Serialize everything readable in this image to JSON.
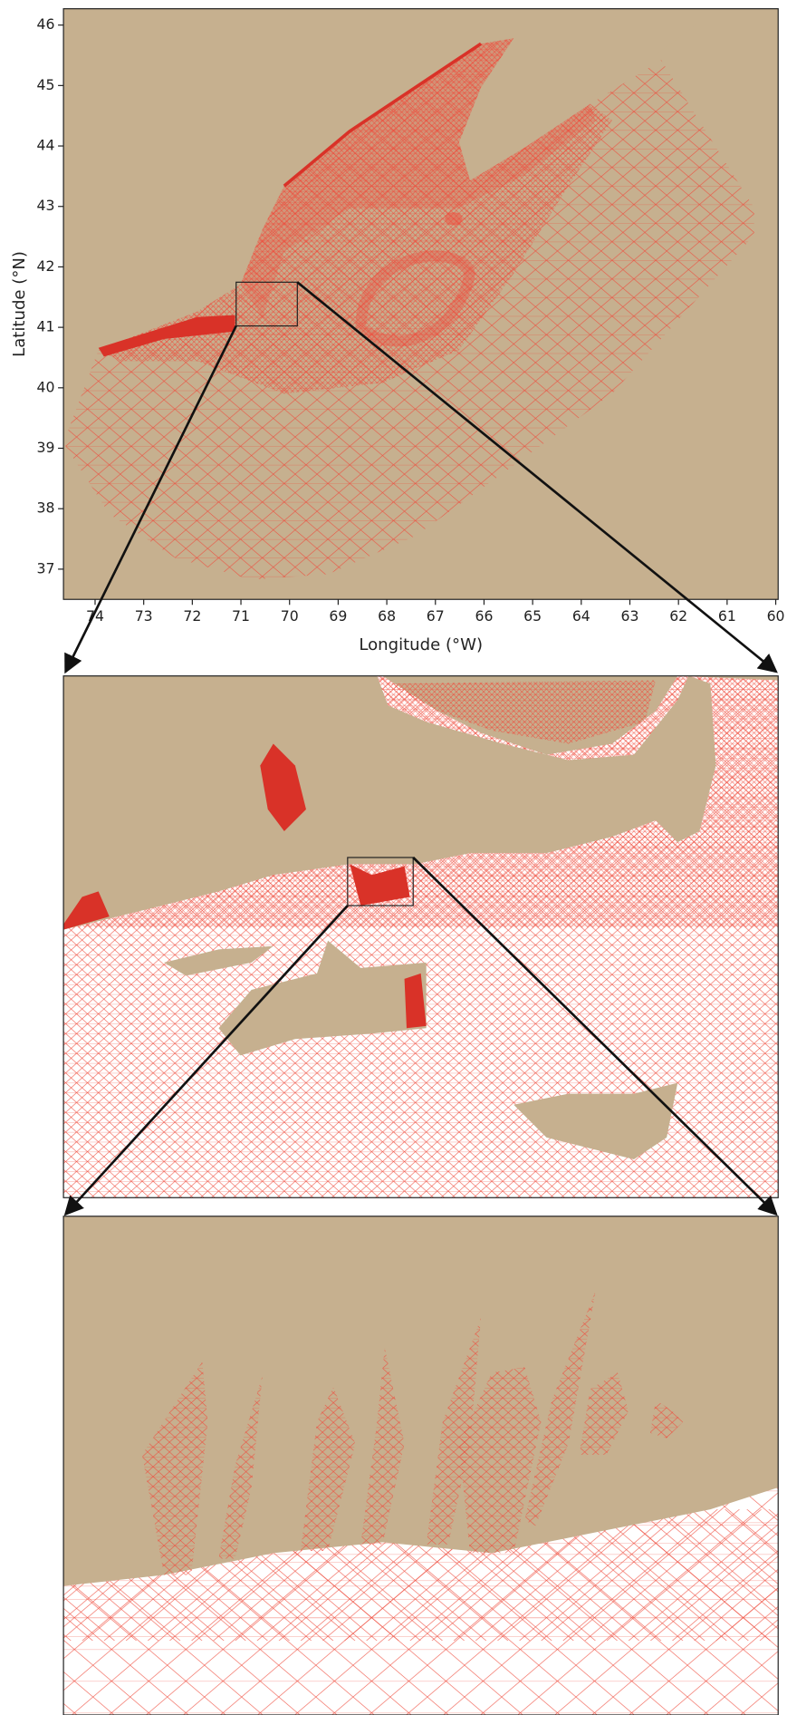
{
  "chart_data": {
    "type": "map",
    "xlabel": "Longitude (°W)",
    "ylabel": "Latitude (°N)",
    "xlim": [
      74.65,
      59.95
    ],
    "ylim": [
      36.5,
      46.27
    ],
    "xticks": [
      74,
      73,
      72,
      71,
      70,
      69,
      68,
      67,
      66,
      65,
      64,
      63,
      62,
      61,
      60
    ],
    "yticks": [
      37,
      38,
      39,
      40,
      41,
      42,
      43,
      44,
      45,
      46
    ],
    "land_color": "#c6b08f",
    "mesh_color": "#ef4b3c"
  }
}
